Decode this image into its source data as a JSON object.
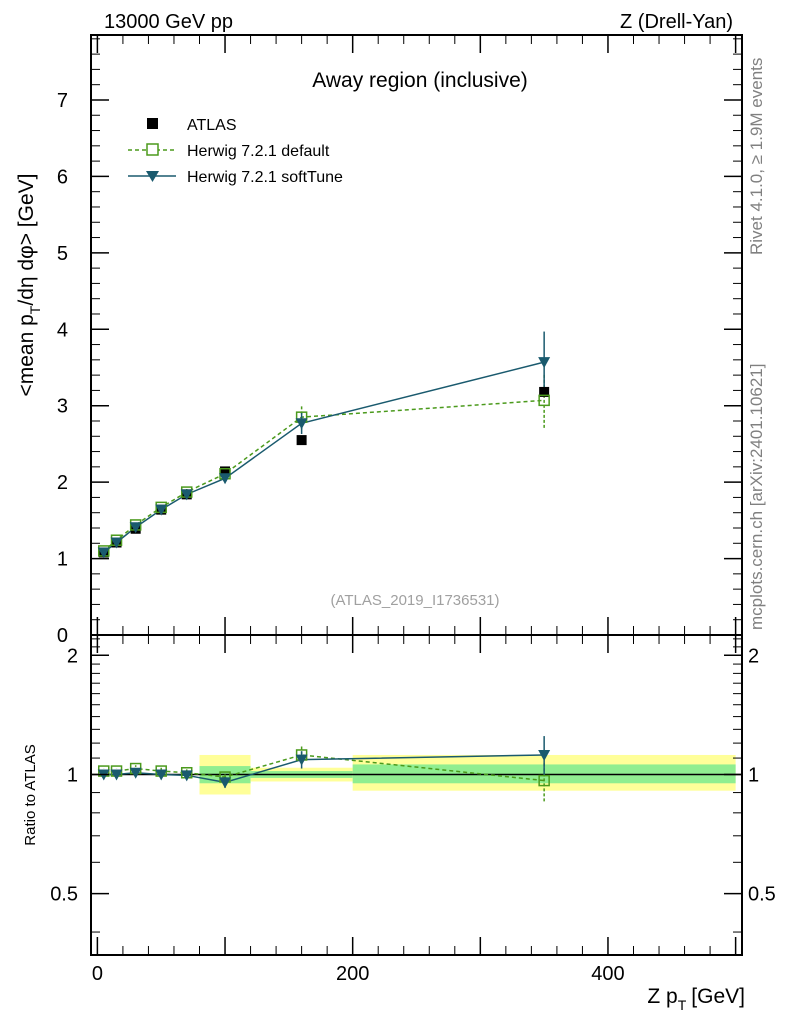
{
  "header": {
    "left": "13000 GeV pp",
    "right": "Z (Drell-Yan)"
  },
  "side_text": {
    "rivet": "Rivet 4.1.0, ≥ 1.9M events",
    "mcplots": "mcplots.cern.ch [arXiv:2401.10621]"
  },
  "colors": {
    "atlas": "#000000",
    "herwig_default": "#4b9a1c",
    "herwig_softtune": "#1a5a6e",
    "band_inner": "#90ee90",
    "band_outer": "#ffff99"
  },
  "chart_data": [
    {
      "type": "scatter",
      "title": "Away region (inclusive)",
      "analysis_id": "(ATLAS_2019_I1736531)",
      "xlabel": "Z p_T [GeV]",
      "xlabel_main": "Z p",
      "xlabel_sub": "T",
      "xlabel_unit": "[GeV]",
      "ylabel": "<mean p_T/dη dφ> [GeV]",
      "ylabel_main": "<mean p",
      "ylabel_sub": "T",
      "ylabel_rest": "/dη dφ> [GeV]",
      "xlim": [
        -5,
        505
      ],
      "ylim": [
        0,
        7.85
      ],
      "yticks": [
        0,
        1,
        2,
        3,
        4,
        5,
        6,
        7
      ],
      "ytick_labels": [
        "0",
        "1",
        "2",
        "3",
        "4",
        "5",
        "6",
        "7"
      ],
      "legend": "top-left",
      "series": [
        {
          "name": "ATLAS",
          "marker": "square-filled",
          "x": [
            5,
            15,
            30,
            50,
            70,
            100,
            160,
            350
          ],
          "y": [
            1.08,
            1.21,
            1.39,
            1.64,
            1.84,
            2.14,
            2.55,
            3.18
          ]
        },
        {
          "name": "Herwig 7.2.1 default",
          "marker": "square-open",
          "line": "dashed",
          "x": [
            5,
            15,
            30,
            50,
            70,
            100,
            160,
            350
          ],
          "y": [
            1.1,
            1.24,
            1.44,
            1.67,
            1.87,
            2.11,
            2.85,
            3.07
          ],
          "err": [
            0.02,
            0.02,
            0.03,
            0.03,
            0.04,
            0.05,
            0.16,
            0.36
          ]
        },
        {
          "name": "Herwig 7.2.1 softTune",
          "marker": "triangle-down",
          "line": "solid",
          "x": [
            5,
            15,
            30,
            50,
            70,
            100,
            160,
            350
          ],
          "y": [
            1.08,
            1.21,
            1.41,
            1.64,
            1.84,
            2.05,
            2.77,
            3.57
          ],
          "err": [
            0.02,
            0.02,
            0.03,
            0.03,
            0.04,
            0.05,
            0.14,
            0.4
          ]
        }
      ]
    },
    {
      "type": "scatter",
      "ylabel": "Ratio to ATLAS",
      "xlim": [
        -5,
        505
      ],
      "ylim": [
        0.35,
        2.25
      ],
      "yticks": [
        0.5,
        1,
        2
      ],
      "ytick_labels": [
        "0.5",
        "1",
        "2"
      ],
      "xticks": [
        0,
        200,
        400
      ],
      "xtick_labels": [
        "0",
        "200",
        "400"
      ],
      "reference_line": 1,
      "bands": [
        {
          "x_range": [
            80,
            120
          ],
          "inner": [
            0.95,
            1.05
          ],
          "outer": [
            0.89,
            1.12
          ]
        },
        {
          "x_range": [
            120,
            200
          ],
          "inner": [
            0.98,
            1.02
          ],
          "outer": [
            0.96,
            1.04
          ]
        },
        {
          "x_range": [
            200,
            500
          ],
          "inner": [
            0.95,
            1.06
          ],
          "outer": [
            0.91,
            1.12
          ]
        }
      ],
      "series": [
        {
          "name": "Herwig 7.2.1 default",
          "x": [
            5,
            15,
            30,
            50,
            70,
            100,
            160,
            350
          ],
          "y": [
            1.02,
            1.02,
            1.035,
            1.02,
            1.01,
            0.985,
            1.12,
            0.965
          ],
          "err": [
            0.015,
            0.015,
            0.02,
            0.02,
            0.02,
            0.03,
            0.06,
            0.11
          ]
        },
        {
          "name": "Herwig 7.2.1 softTune",
          "x": [
            5,
            15,
            30,
            50,
            70,
            100,
            160,
            350
          ],
          "y": [
            1.0,
            1.0,
            1.01,
            1.0,
            0.995,
            0.955,
            1.09,
            1.12
          ],
          "err": [
            0.015,
            0.015,
            0.02,
            0.02,
            0.02,
            0.03,
            0.055,
            0.13
          ]
        }
      ]
    }
  ]
}
